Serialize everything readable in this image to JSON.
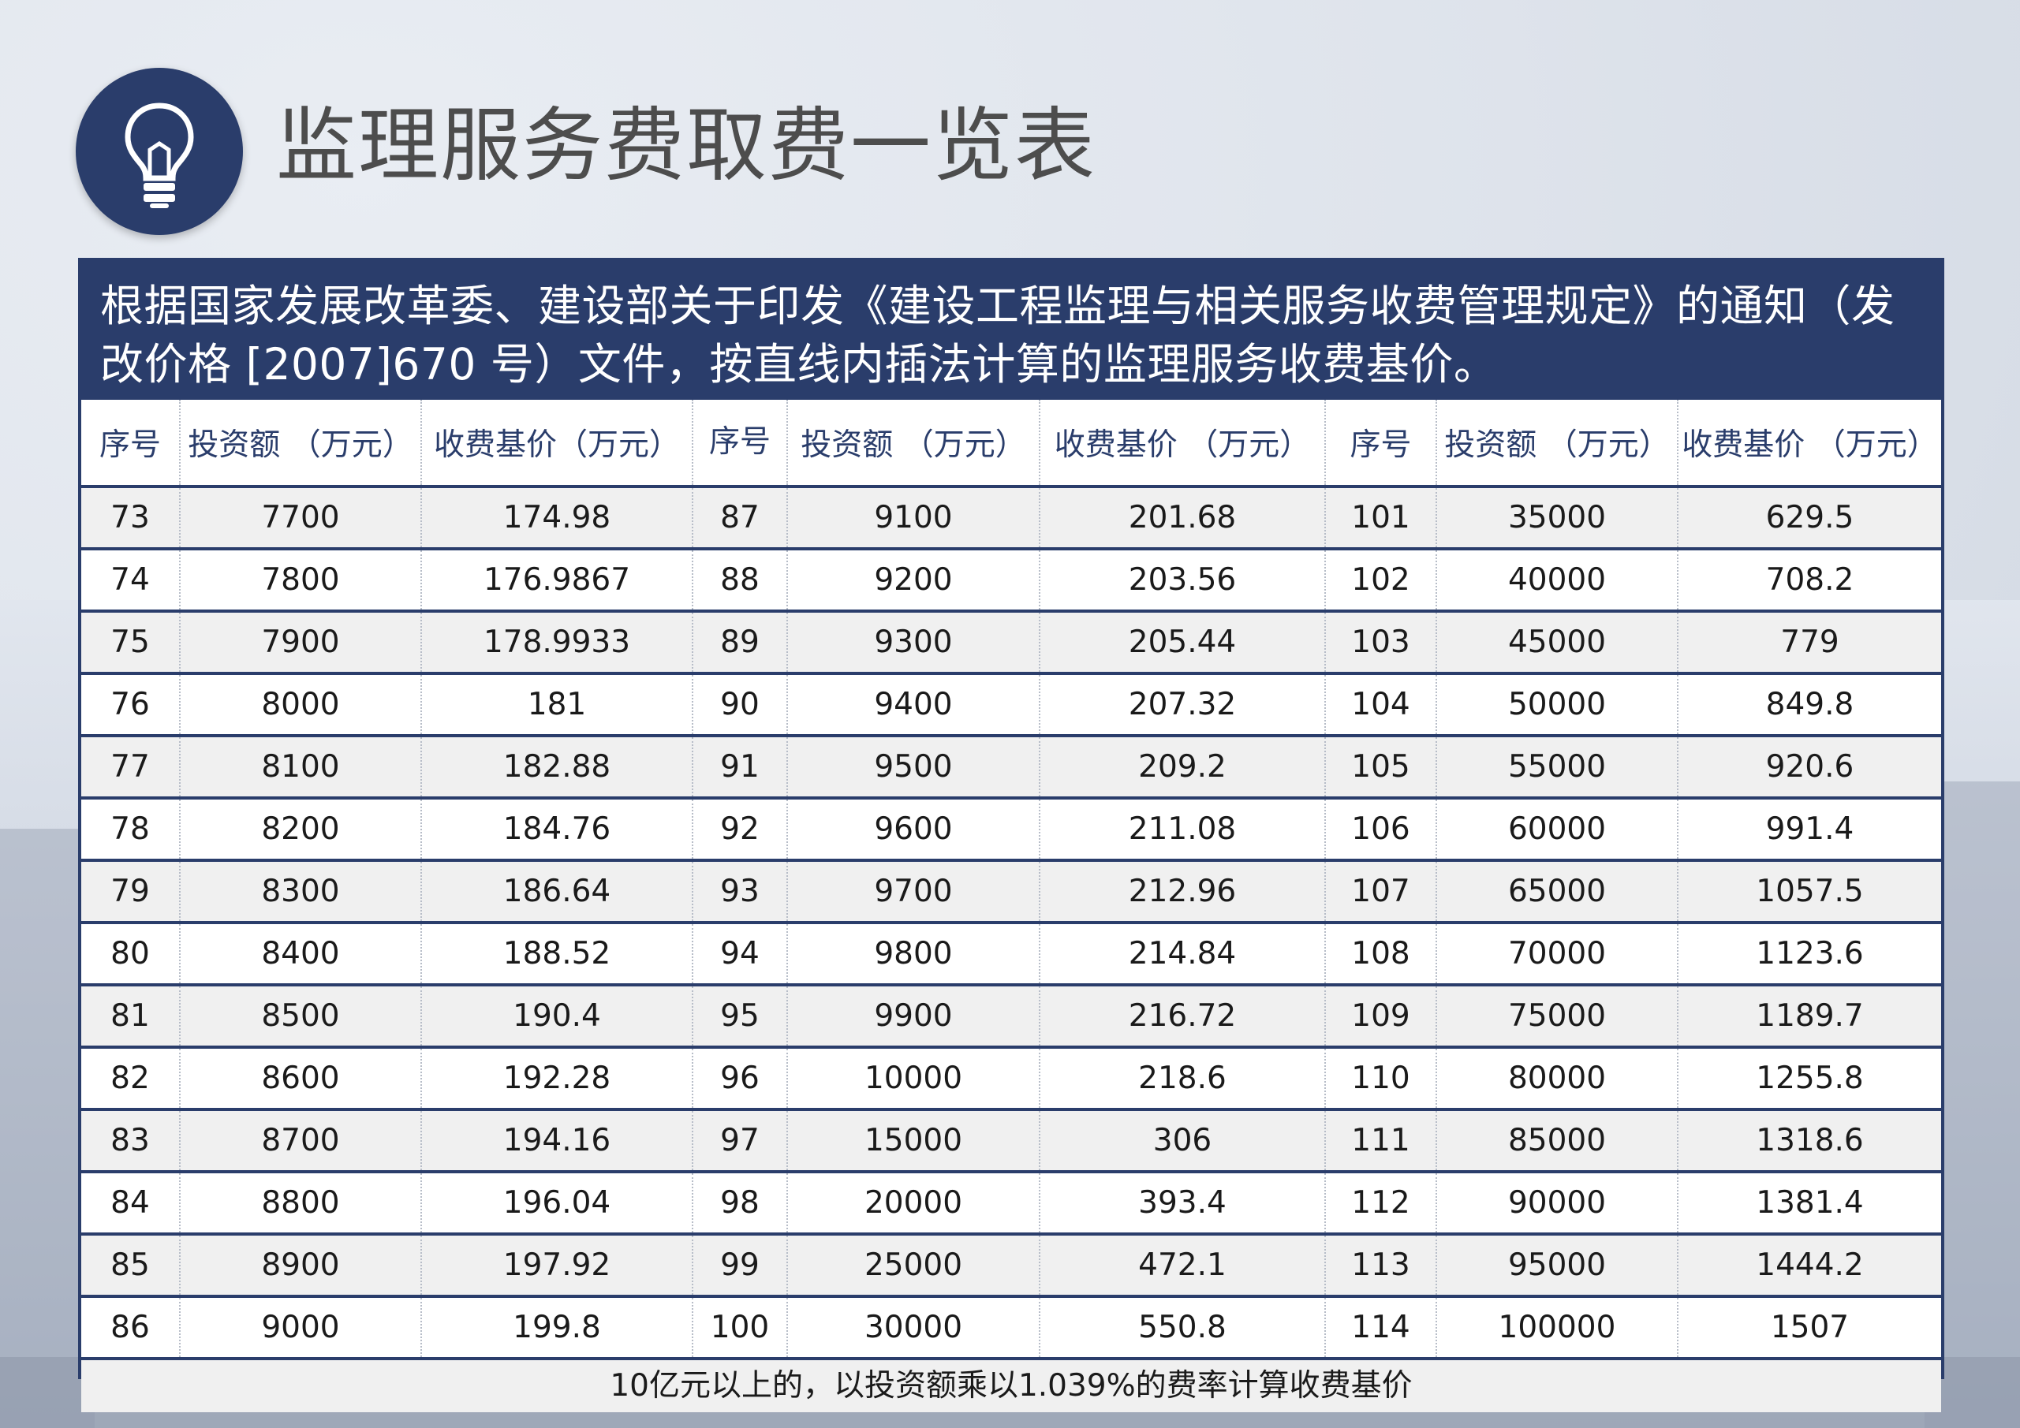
{
  "title": "监理服务费取费一览表",
  "intro": "根据国家发展改革委、建设部关于印发《建设工程监理与相关服务收费管理规定》的通知（发改价格 [2007]670 号）文件，按直线内插法计算的监理服务收费基价。",
  "table": {
    "headers": [
      "序号",
      "投资额 （万元）",
      "收费基价（万元）",
      "序号",
      "投资额 （万元）",
      "收费基价 （万元）",
      "序号",
      "投资额 （万元）",
      "收费基价 （万元）"
    ],
    "rows": [
      [
        "73",
        "7700",
        "174.98",
        "87",
        "9100",
        "201.68",
        "101",
        "35000",
        "629.5"
      ],
      [
        "74",
        "7800",
        "176.9867",
        "88",
        "9200",
        "203.56",
        "102",
        "40000",
        "708.2"
      ],
      [
        "75",
        "7900",
        "178.9933",
        "89",
        "9300",
        "205.44",
        "103",
        "45000",
        "779"
      ],
      [
        "76",
        "8000",
        "181",
        "90",
        "9400",
        "207.32",
        "104",
        "50000",
        "849.8"
      ],
      [
        "77",
        "8100",
        "182.88",
        "91",
        "9500",
        "209.2",
        "105",
        "55000",
        "920.6"
      ],
      [
        "78",
        "8200",
        "184.76",
        "92",
        "9600",
        "211.08",
        "106",
        "60000",
        "991.4"
      ],
      [
        "79",
        "8300",
        "186.64",
        "93",
        "9700",
        "212.96",
        "107",
        "65000",
        "1057.5"
      ],
      [
        "80",
        "8400",
        "188.52",
        "94",
        "9800",
        "214.84",
        "108",
        "70000",
        "1123.6"
      ],
      [
        "81",
        "8500",
        "190.4",
        "95",
        "9900",
        "216.72",
        "109",
        "75000",
        "1189.7"
      ],
      [
        "82",
        "8600",
        "192.28",
        "96",
        "10000",
        "218.6",
        "110",
        "80000",
        "1255.8"
      ],
      [
        "83",
        "8700",
        "194.16",
        "97",
        "15000",
        "306",
        "111",
        "85000",
        "1318.6"
      ],
      [
        "84",
        "8800",
        "196.04",
        "98",
        "20000",
        "393.4",
        "112",
        "90000",
        "1381.4"
      ],
      [
        "85",
        "8900",
        "197.92",
        "99",
        "25000",
        "472.1",
        "113",
        "95000",
        "1444.2"
      ],
      [
        "86",
        "9000",
        "199.8",
        "100",
        "30000",
        "550.8",
        "114",
        "100000",
        "1507"
      ]
    ],
    "footnote": "10亿元以上的，以投资额乘以1.039%的费率计算收费基价"
  },
  "colors": {
    "navy": "#2a3d6b",
    "row_alt": "#f0f0f0"
  },
  "icons": {
    "header": "lightbulb-icon"
  }
}
